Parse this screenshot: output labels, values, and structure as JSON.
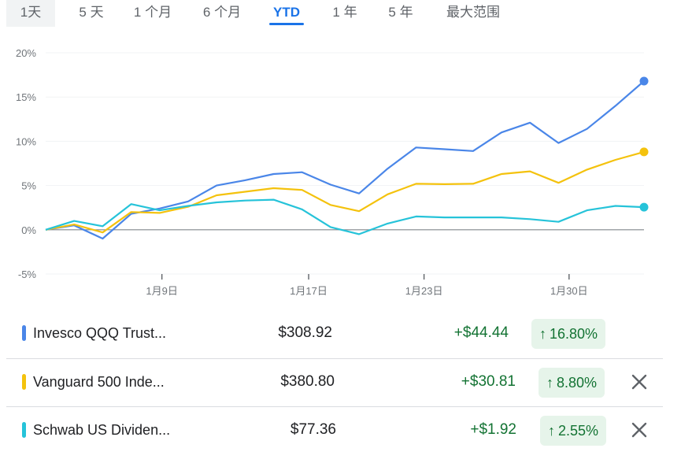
{
  "range_tabs": [
    {
      "label": "1天"
    },
    {
      "label": "5 天"
    },
    {
      "label": "1 个月"
    },
    {
      "label": "6 个月"
    },
    {
      "label": "YTD"
    },
    {
      "label": "1 年"
    },
    {
      "label": "5 年"
    },
    {
      "label": "最大范围"
    }
  ],
  "active_tab": "YTD",
  "colors": {
    "series_1": "#4a86e8",
    "series_2": "#f4c20d",
    "series_3": "#26c3d9",
    "positive": "#137333",
    "positive_bg": "#e6f4ea",
    "accent": "#1a73e8"
  },
  "chart_data": {
    "type": "line",
    "y_tick_labels": [
      "20%",
      "15%",
      "10%",
      "5%",
      "0%",
      "-5%"
    ],
    "y_ticks": [
      20,
      15,
      10,
      5,
      0,
      -5
    ],
    "ylim": [
      -5,
      20
    ],
    "x_tick_labels": [
      "1月9日",
      "1月17日",
      "1月23日",
      "1月30日"
    ],
    "x_tick_index": [
      4.08,
      9.23,
      13.28,
      18.37
    ],
    "points_count": 22,
    "series": [
      {
        "name": "Invesco QQQ Trust...",
        "color": "#4a86e8",
        "values": [
          0,
          0.5,
          -1.0,
          1.8,
          2.4,
          3.2,
          5.0,
          5.6,
          6.3,
          6.5,
          5.1,
          4.1,
          6.9,
          9.3,
          9.1,
          8.9,
          11.0,
          12.1,
          9.8,
          11.4,
          14.0,
          16.8
        ]
      },
      {
        "name": "Vanguard 500 Inde...",
        "color": "#f4c20d",
        "values": [
          0,
          0.6,
          -0.3,
          2.0,
          1.9,
          2.6,
          3.9,
          4.3,
          4.7,
          4.5,
          2.8,
          2.1,
          4.0,
          5.2,
          5.15,
          5.2,
          6.3,
          6.6,
          5.3,
          6.8,
          7.9,
          8.8
        ]
      },
      {
        "name": "Schwab US Dividen...",
        "color": "#26c3d9",
        "values": [
          0,
          1.0,
          0.4,
          2.9,
          2.2,
          2.7,
          3.1,
          3.3,
          3.4,
          2.3,
          0.3,
          -0.5,
          0.7,
          1.5,
          1.4,
          1.4,
          1.4,
          1.2,
          0.9,
          2.2,
          2.7,
          2.55
        ]
      }
    ]
  },
  "comparisons": [
    {
      "name": "Invesco QQQ Trust...",
      "price": "$308.92",
      "change": "+$44.44",
      "pct": "16.80%",
      "arrow": "↑",
      "color": "#4a86e8",
      "removable": false
    },
    {
      "name": "Vanguard 500 Inde...",
      "price": "$380.80",
      "change": "+$30.81",
      "pct": "8.80%",
      "arrow": "↑",
      "color": "#f4c20d",
      "removable": true
    },
    {
      "name": "Schwab US Dividen...",
      "price": "$77.36",
      "change": "+$1.92",
      "pct": "2.55%",
      "arrow": "↑",
      "color": "#26c3d9",
      "removable": true
    }
  ]
}
